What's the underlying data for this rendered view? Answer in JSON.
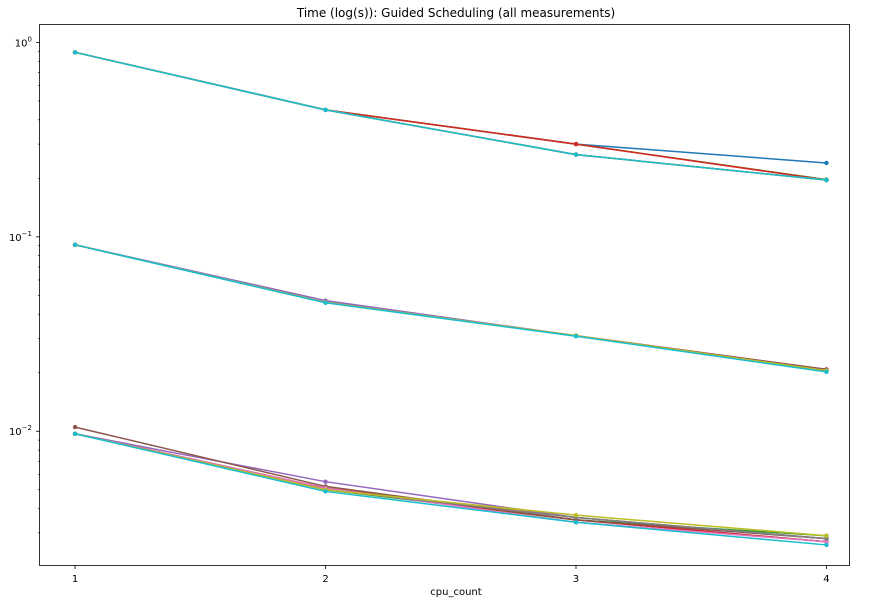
{
  "chart_data": {
    "type": "line",
    "title": "Time (log(s)): Guided Scheduling (all measurements)",
    "xlabel": "cpu_count",
    "ylabel": "",
    "yscale": "log",
    "x": [
      1,
      2,
      3,
      4
    ],
    "xlim": [
      0.86,
      4.09
    ],
    "ylim": [
      0.00205,
      1.23
    ],
    "x_tick_labels": [
      "1",
      "2",
      "3",
      "4"
    ],
    "y_ticks": [
      {
        "value": 0.01,
        "base": "10",
        "exp": "−2"
      },
      {
        "value": 0.1,
        "base": "10",
        "exp": "−1"
      },
      {
        "value": 1,
        "base": "10",
        "exp": "0"
      }
    ],
    "grid": false,
    "legend": "none",
    "series": [
      {
        "color": "#1f77b4",
        "values": [
          0.89,
          0.45,
          0.3,
          0.24
        ]
      },
      {
        "color": "#ff7f0e",
        "values": [
          0.89,
          0.45,
          0.3,
          0.197
        ]
      },
      {
        "color": "#2ca02c",
        "values": [
          0.89,
          0.45,
          0.3,
          0.197
        ]
      },
      {
        "color": "#d62728",
        "values": [
          0.89,
          0.45,
          0.3,
          0.196
        ]
      },
      {
        "color": "#9467bd",
        "values": [
          0.89,
          0.45,
          0.265,
          0.196
        ]
      },
      {
        "color": "#8c564b",
        "values": [
          0.89,
          0.45,
          0.265,
          0.196
        ]
      },
      {
        "color": "#e377c2",
        "values": [
          0.89,
          0.45,
          0.265,
          0.196
        ]
      },
      {
        "color": "#7f7f7f",
        "values": [
          0.89,
          0.45,
          0.265,
          0.196
        ]
      },
      {
        "color": "#bcbd22",
        "values": [
          0.89,
          0.45,
          0.265,
          0.196
        ]
      },
      {
        "color": "#17becf",
        "values": [
          0.89,
          0.45,
          0.265,
          0.196
        ]
      },
      {
        "color": "#1f77b4",
        "values": [
          0.091,
          0.046,
          0.031,
          0.0205
        ]
      },
      {
        "color": "#ff7f0e",
        "values": [
          0.091,
          0.046,
          0.031,
          0.0205
        ]
      },
      {
        "color": "#2ca02c",
        "values": [
          0.091,
          0.046,
          0.031,
          0.0205
        ]
      },
      {
        "color": "#d62728",
        "values": [
          0.091,
          0.046,
          0.031,
          0.0208
        ]
      },
      {
        "color": "#9467bd",
        "values": [
          0.091,
          0.047,
          0.031,
          0.0205
        ]
      },
      {
        "color": "#8c564b",
        "values": [
          0.091,
          0.046,
          0.031,
          0.0208
        ]
      },
      {
        "color": "#e377c2",
        "values": [
          0.091,
          0.046,
          0.031,
          0.0205
        ]
      },
      {
        "color": "#7f7f7f",
        "values": [
          0.091,
          0.046,
          0.031,
          0.0205
        ]
      },
      {
        "color": "#bcbd22",
        "values": [
          0.091,
          0.046,
          0.031,
          0.0205
        ]
      },
      {
        "color": "#17becf",
        "values": [
          0.091,
          0.0458,
          0.0308,
          0.0202
        ]
      },
      {
        "color": "#1f77b4",
        "values": [
          0.0097,
          0.0051,
          0.0035,
          0.0027
        ]
      },
      {
        "color": "#ff7f0e",
        "values": [
          0.0097,
          0.0051,
          0.0036,
          0.0028
        ]
      },
      {
        "color": "#2ca02c",
        "values": [
          0.0097,
          0.005,
          0.0035,
          0.0029
        ]
      },
      {
        "color": "#d62728",
        "values": [
          0.0097,
          0.0051,
          0.0035,
          0.0027
        ]
      },
      {
        "color": "#9467bd",
        "values": [
          0.0097,
          0.0055,
          0.0036,
          0.0028
        ]
      },
      {
        "color": "#8c564b",
        "values": [
          0.0105,
          0.0052,
          0.0035,
          0.0028
        ]
      },
      {
        "color": "#e377c2",
        "values": [
          0.0097,
          0.0051,
          0.0034,
          0.0027
        ]
      },
      {
        "color": "#7f7f7f",
        "values": [
          0.0097,
          0.005,
          0.0036,
          0.0028
        ]
      },
      {
        "color": "#bcbd22",
        "values": [
          0.0097,
          0.005,
          0.0037,
          0.0029
        ]
      },
      {
        "color": "#17becf",
        "values": [
          0.0097,
          0.0049,
          0.0034,
          0.0026
        ]
      }
    ]
  }
}
